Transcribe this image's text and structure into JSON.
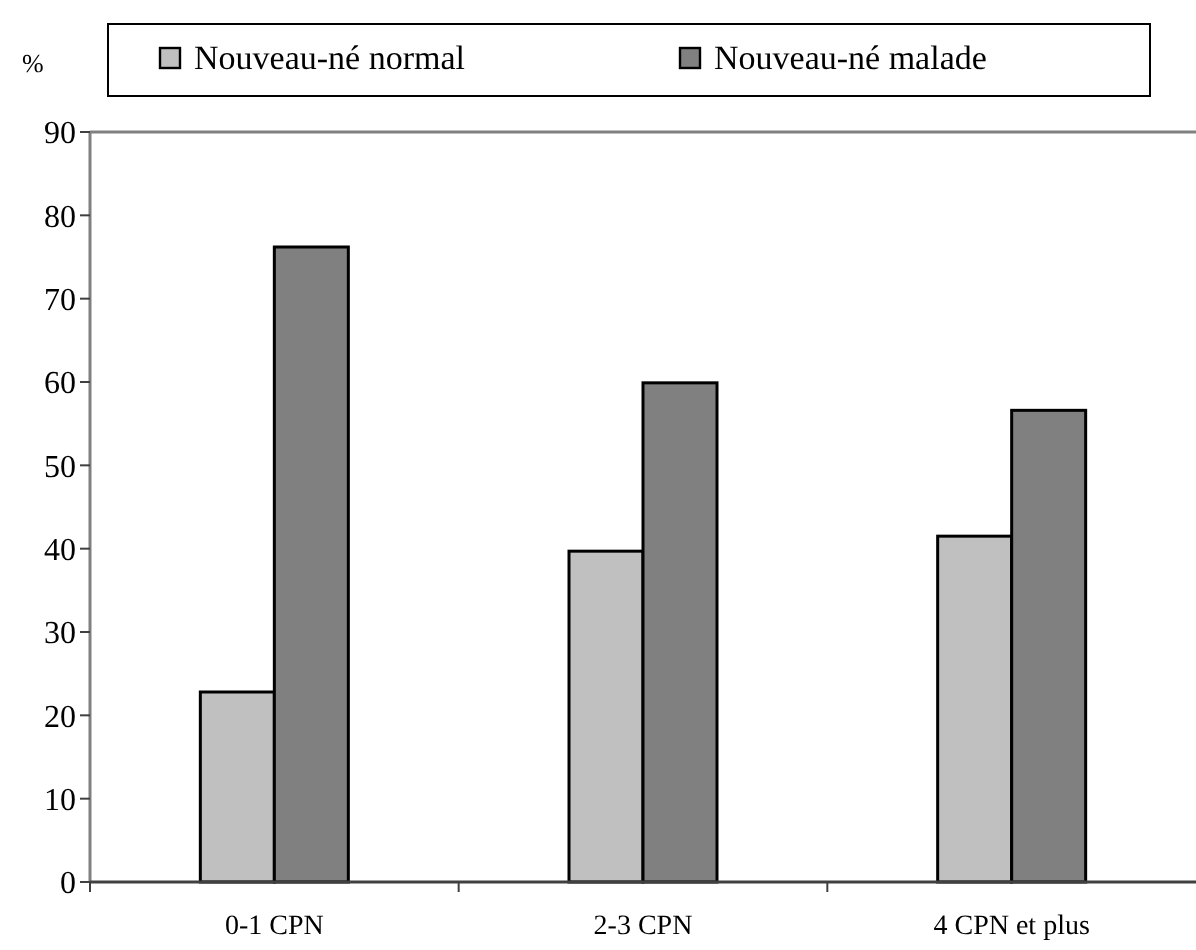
{
  "chart_data": {
    "type": "bar",
    "ylabel": "%",
    "categories": [
      "0-1 CPN",
      "2-3 CPN",
      "4 CPN et plus"
    ],
    "series": [
      {
        "name": "Nouveau-né normal",
        "color": "#c0c0c0",
        "values": [
          22.8,
          39.7,
          41.5
        ]
      },
      {
        "name": "Nouveau-né malade",
        "color": "#808080",
        "values": [
          76.2,
          59.9,
          56.6
        ]
      }
    ],
    "ylim": [
      0,
      90
    ],
    "yticks": [
      0,
      10,
      20,
      30,
      40,
      50,
      60,
      70,
      80,
      90
    ],
    "grid": false,
    "legend": "top"
  }
}
